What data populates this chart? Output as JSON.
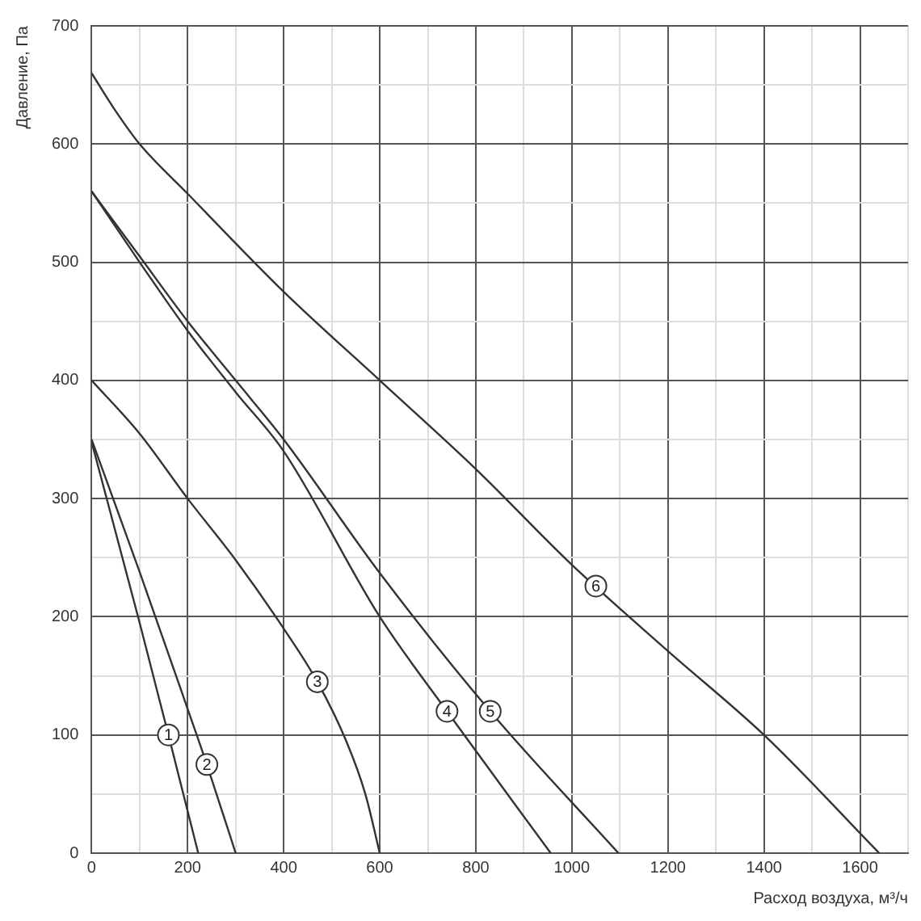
{
  "chart_data": {
    "type": "line",
    "xlabel": "Расход воздуха, м³/ч",
    "ylabel": "Давление, Па",
    "xlim": [
      0,
      1700
    ],
    "ylim": [
      0,
      700
    ],
    "xticks": [
      0,
      {
        "value": 100,
        "label": null
      },
      200,
      {
        "value": 300,
        "label": null
      },
      400,
      {
        "value": 500,
        "label": null
      },
      600,
      {
        "value": 700,
        "label": null
      },
      800,
      {
        "value": 900,
        "label": null
      },
      1000,
      {
        "value": 1100,
        "label": null
      },
      1200,
      {
        "value": 1300,
        "label": null
      },
      1400,
      {
        "value": 1500,
        "label": null
      },
      1600,
      {
        "value": 1700,
        "label": null
      }
    ],
    "yticks": [
      0,
      {
        "value": 50,
        "label": null
      },
      100,
      {
        "value": 150,
        "label": null
      },
      200,
      {
        "value": 250,
        "label": null
      },
      300,
      {
        "value": 350,
        "label": null
      },
      400,
      {
        "value": 450,
        "label": null
      },
      500,
      {
        "value": 550,
        "label": null
      },
      600,
      {
        "value": 650,
        "label": null
      },
      700
    ],
    "grid": true,
    "marker": "none",
    "line_style": "solid",
    "series": [
      {
        "color": "#333333",
        "x": [
          0,
          100,
          160,
          222
        ],
        "values": [
          348,
          195,
          100,
          0
        ]
      },
      {
        "color": "#333333",
        "x": [
          0,
          100,
          200,
          240,
          300
        ],
        "values": [
          350,
          238,
          122,
          75,
          0
        ]
      },
      {
        "color": "#333333",
        "x": [
          0,
          100,
          200,
          300,
          400,
          470,
          530,
          570,
          600
        ],
        "values": [
          400,
          355,
          300,
          248,
          190,
          145,
          95,
          50,
          0
        ]
      },
      {
        "color": "#333333",
        "x": [
          0,
          100,
          200,
          300,
          400,
          600,
          740,
          956
        ],
        "values": [
          560,
          500,
          442,
          390,
          340,
          200,
          120,
          0
        ]
      },
      {
        "color": "#333333",
        "x": [
          0,
          100,
          200,
          300,
          400,
          600,
          830,
          1097
        ],
        "values": [
          560,
          505,
          450,
          400,
          350,
          237,
          120,
          0
        ]
      },
      {
        "color": "#333333",
        "x": [
          0,
          50,
          100,
          200,
          400,
          600,
          800,
          1000,
          1200,
          1400,
          1640
        ],
        "values": [
          660,
          628,
          600,
          558,
          475,
          400,
          325,
          244,
          171,
          100,
          0
        ]
      }
    ],
    "annotations": [
      {
        "text": "1",
        "x": 160,
        "y": 100
      },
      {
        "text": "2",
        "x": 240,
        "y": 75
      },
      {
        "text": "3",
        "x": 470,
        "y": 145
      },
      {
        "text": "4",
        "x": 740,
        "y": 120
      },
      {
        "text": "5",
        "x": 830,
        "y": 120
      },
      {
        "text": "6",
        "x": 1050,
        "y": 226
      }
    ]
  }
}
